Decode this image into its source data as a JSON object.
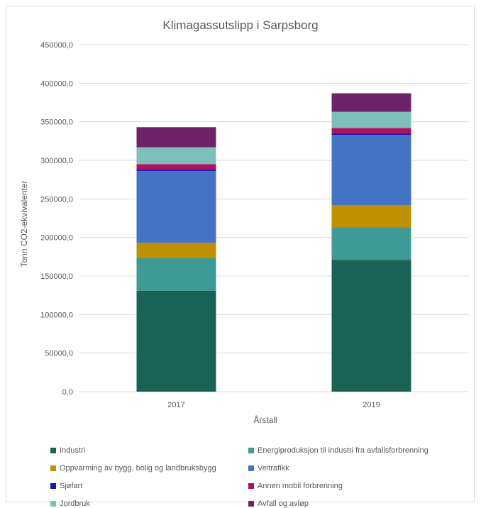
{
  "chart_data": {
    "type": "bar",
    "stacked": true,
    "title": "Klimagassutslipp  i Sarpsborg",
    "xlabel": "Årstall",
    "ylabel": "Tonn CO2-ekvivalenter",
    "ylim": [
      0,
      450000
    ],
    "yticks": [
      0,
      50000,
      100000,
      150000,
      200000,
      250000,
      300000,
      350000,
      400000,
      450000
    ],
    "ytick_labels": [
      "0,0",
      "50000,0",
      "100000,0",
      "150000,0",
      "200000,0",
      "250000,0",
      "300000,0",
      "350000,0",
      "400000,0",
      "450000,0"
    ],
    "grid": true,
    "legend_position": "bottom",
    "categories": [
      "2017",
      "2019"
    ],
    "series": [
      {
        "name": "Industri",
        "color": "#1a6354",
        "values": [
          131000,
          171000
        ]
      },
      {
        "name": "Energiproduksjon til industri fra avfallsforbrenning",
        "color": "#3e9a97",
        "values": [
          42000,
          42000
        ]
      },
      {
        "name": "Oppvarming av bygg, bolig og landbruksbygg",
        "color": "#bf9000",
        "values": [
          20000,
          29000
        ]
      },
      {
        "name": "Veitrafikk",
        "color": "#4472c4",
        "values": [
          93000,
          91000
        ]
      },
      {
        "name": "Sjøfart",
        "color": "#1a1ab0",
        "values": [
          2000,
          2000
        ]
      },
      {
        "name": "Annen mobil forbrenning",
        "color": "#b0105f",
        "values": [
          7000,
          7000
        ]
      },
      {
        "name": "Jordbruk",
        "color": "#7fbfba",
        "values": [
          22000,
          21000
        ]
      },
      {
        "name": "Avfall og avløp",
        "color": "#6e2368",
        "values": [
          26000,
          24000
        ]
      }
    ]
  }
}
